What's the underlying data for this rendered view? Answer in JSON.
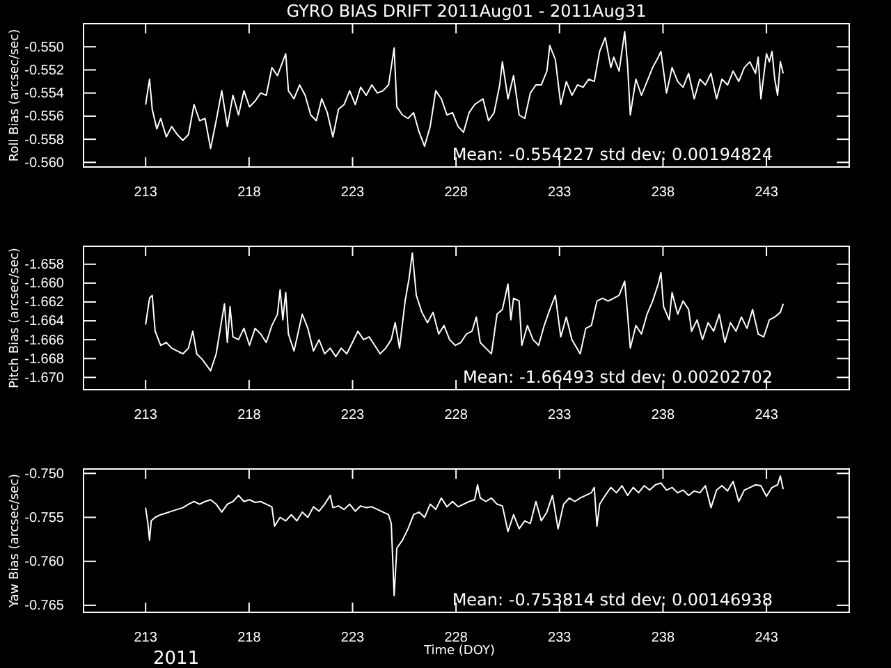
{
  "chart_data": [
    {
      "type": "line",
      "title": "GYRO BIAS DRIFT 2011Aug01 - 2011Aug31",
      "ylabel": "Roll Bias (arcsec/sec)",
      "annotations": [
        "Mean: -0.554227 std dev: 0.00194824"
      ],
      "xlim": [
        210,
        247
      ],
      "xticks": [
        213,
        218,
        223,
        228,
        233,
        238,
        243
      ],
      "ylim": [
        -0.5604,
        -0.548
      ],
      "yticks": [
        {
          "value": -0.55,
          "label": "-0.550"
        },
        {
          "value": -0.552,
          "label": "-0.552"
        },
        {
          "value": -0.554,
          "label": "-0.554"
        },
        {
          "value": -0.556,
          "label": "-0.556"
        },
        {
          "value": -0.558,
          "label": "-0.558"
        },
        {
          "value": -0.56,
          "label": "-0.560"
        }
      ],
      "series": [
        {
          "color": "#ffffff",
          "x": [
            213.0,
            213.19,
            213.32,
            213.54,
            213.73,
            214.0,
            214.26,
            214.53,
            214.8,
            215.07,
            215.34,
            215.61,
            215.87,
            216.14,
            216.41,
            216.68,
            216.95,
            217.22,
            217.49,
            217.75,
            218.02,
            218.29,
            218.56,
            218.83,
            219.1,
            219.37,
            219.77,
            219.9,
            220.17,
            220.44,
            220.71,
            220.98,
            221.25,
            221.51,
            221.78,
            222.05,
            222.32,
            222.59,
            222.86,
            223.13,
            223.39,
            223.66,
            223.93,
            224.2,
            224.47,
            224.74,
            225.01,
            225.14,
            225.41,
            225.68,
            225.95,
            226.22,
            226.48,
            226.75,
            227.02,
            227.29,
            227.56,
            227.83,
            228.1,
            228.36,
            228.63,
            228.9,
            229.3,
            229.57,
            229.84,
            230.11,
            230.24,
            230.51,
            230.78,
            231.05,
            231.32,
            231.59,
            231.86,
            232.12,
            232.39,
            232.53,
            232.8,
            233.06,
            233.33,
            233.6,
            233.87,
            234.14,
            234.41,
            234.68,
            234.94,
            235.21,
            235.48,
            235.62,
            235.88,
            236.15,
            236.29,
            236.42,
            236.69,
            236.96,
            237.23,
            237.5,
            237.77,
            237.9,
            238.17,
            238.44,
            238.71,
            238.97,
            239.24,
            239.51,
            239.78,
            240.05,
            240.32,
            240.59,
            240.85,
            241.12,
            241.39,
            241.66,
            241.93,
            242.2,
            242.47,
            242.6,
            242.73,
            243.0,
            243.14,
            243.27,
            243.4,
            243.54,
            243.67,
            243.81
          ],
          "values": [
            -0.555,
            -0.5528,
            -0.5554,
            -0.5571,
            -0.5562,
            -0.5578,
            -0.5569,
            -0.5576,
            -0.5581,
            -0.5576,
            -0.555,
            -0.5564,
            -0.5562,
            -0.5588,
            -0.5564,
            -0.5538,
            -0.5569,
            -0.5542,
            -0.5559,
            -0.5538,
            -0.5552,
            -0.5547,
            -0.554,
            -0.5542,
            -0.5518,
            -0.5525,
            -0.5506,
            -0.5538,
            -0.5545,
            -0.5533,
            -0.5542,
            -0.5559,
            -0.5564,
            -0.5545,
            -0.5557,
            -0.5578,
            -0.5554,
            -0.555,
            -0.5538,
            -0.555,
            -0.5535,
            -0.5542,
            -0.5533,
            -0.554,
            -0.5538,
            -0.5533,
            -0.5501,
            -0.5552,
            -0.5559,
            -0.5562,
            -0.5557,
            -0.5574,
            -0.5586,
            -0.5569,
            -0.5538,
            -0.5545,
            -0.5559,
            -0.5557,
            -0.5569,
            -0.5574,
            -0.5557,
            -0.555,
            -0.5545,
            -0.5564,
            -0.5557,
            -0.5533,
            -0.5513,
            -0.5545,
            -0.5525,
            -0.5559,
            -0.5562,
            -0.554,
            -0.5533,
            -0.5533,
            -0.5521,
            -0.5499,
            -0.5511,
            -0.555,
            -0.553,
            -0.5542,
            -0.5533,
            -0.5535,
            -0.5528,
            -0.553,
            -0.5504,
            -0.5492,
            -0.5518,
            -0.5509,
            -0.5521,
            -0.5487,
            -0.5516,
            -0.5559,
            -0.5528,
            -0.5542,
            -0.553,
            -0.5518,
            -0.5509,
            -0.5504,
            -0.554,
            -0.5518,
            -0.553,
            -0.5535,
            -0.5523,
            -0.5545,
            -0.5528,
            -0.5533,
            -0.5523,
            -0.5545,
            -0.5528,
            -0.5533,
            -0.5521,
            -0.553,
            -0.5518,
            -0.5513,
            -0.5523,
            -0.5509,
            -0.5545,
            -0.5506,
            -0.5513,
            -0.5504,
            -0.5528,
            -0.5542,
            -0.5513,
            -0.5523
          ]
        }
      ]
    },
    {
      "type": "line",
      "ylabel": "Pitch Bias (arcsec/sec)",
      "annotations": [
        "Mean: -1.66493 std dev: 0.00202702"
      ],
      "xlim": [
        210,
        247
      ],
      "xticks": [
        213,
        218,
        223,
        228,
        233,
        238,
        243
      ],
      "ylim": [
        -1.6713,
        -1.6561
      ],
      "yticks": [
        {
          "value": -1.658,
          "label": "-1.658"
        },
        {
          "value": -1.66,
          "label": "-1.660"
        },
        {
          "value": -1.662,
          "label": "-1.662"
        },
        {
          "value": -1.664,
          "label": "-1.664"
        },
        {
          "value": -1.666,
          "label": "-1.666"
        },
        {
          "value": -1.668,
          "label": "-1.668"
        },
        {
          "value": -1.67,
          "label": "-1.670"
        }
      ],
      "series": [
        {
          "color": "#ffffff",
          "x": [
            213.0,
            213.19,
            213.32,
            213.46,
            213.73,
            214.0,
            214.26,
            214.53,
            214.8,
            215.07,
            215.28,
            215.47,
            215.74,
            216.14,
            216.41,
            216.68,
            216.81,
            216.95,
            217.08,
            217.22,
            217.49,
            217.75,
            218.02,
            218.29,
            218.56,
            218.83,
            219.1,
            219.37,
            219.5,
            219.63,
            219.77,
            219.9,
            220.17,
            220.57,
            220.84,
            221.11,
            221.38,
            221.65,
            221.92,
            222.19,
            222.45,
            222.72,
            222.99,
            223.26,
            223.53,
            223.8,
            224.07,
            224.33,
            224.6,
            224.87,
            225.06,
            225.27,
            225.54,
            225.73,
            225.89,
            226.08,
            226.35,
            226.62,
            226.89,
            227.16,
            227.42,
            227.69,
            227.96,
            228.23,
            228.5,
            228.77,
            228.98,
            229.17,
            229.44,
            229.71,
            229.98,
            230.24,
            230.51,
            230.65,
            230.78,
            231.05,
            231.18,
            231.45,
            231.72,
            231.99,
            232.26,
            232.53,
            232.8,
            233.06,
            233.33,
            233.6,
            234.0,
            234.27,
            234.54,
            234.81,
            235.08,
            235.35,
            235.62,
            235.88,
            236.15,
            236.29,
            236.42,
            236.69,
            236.96,
            237.23,
            237.5,
            237.77,
            237.9,
            238.03,
            238.3,
            238.44,
            238.71,
            238.97,
            239.24,
            239.38,
            239.65,
            239.91,
            240.18,
            240.45,
            240.72,
            240.99,
            241.26,
            241.53,
            241.79,
            242.06,
            242.33,
            242.6,
            242.87,
            243.14,
            243.4,
            243.67,
            243.81
          ],
          "values": [
            -1.6644,
            -1.6616,
            -1.6613,
            -1.6651,
            -1.6666,
            -1.6663,
            -1.6669,
            -1.6672,
            -1.6675,
            -1.6669,
            -1.6651,
            -1.6675,
            -1.6681,
            -1.6693,
            -1.6675,
            -1.6639,
            -1.6622,
            -1.6663,
            -1.6625,
            -1.6657,
            -1.666,
            -1.6648,
            -1.6666,
            -1.6648,
            -1.6654,
            -1.6663,
            -1.6645,
            -1.6633,
            -1.6607,
            -1.6639,
            -1.661,
            -1.6654,
            -1.6672,
            -1.6633,
            -1.6648,
            -1.6672,
            -1.666,
            -1.6675,
            -1.6669,
            -1.6678,
            -1.6669,
            -1.6675,
            -1.6663,
            -1.6651,
            -1.666,
            -1.6657,
            -1.6666,
            -1.6675,
            -1.6669,
            -1.666,
            -1.6642,
            -1.6669,
            -1.6619,
            -1.6595,
            -1.6568,
            -1.6613,
            -1.6631,
            -1.6642,
            -1.6631,
            -1.6654,
            -1.6645,
            -1.666,
            -1.6666,
            -1.6663,
            -1.6654,
            -1.6651,
            -1.6636,
            -1.6663,
            -1.6669,
            -1.6675,
            -1.6633,
            -1.6628,
            -1.6601,
            -1.6639,
            -1.6616,
            -1.6619,
            -1.6666,
            -1.6645,
            -1.666,
            -1.6666,
            -1.6645,
            -1.6628,
            -1.6613,
            -1.6657,
            -1.6636,
            -1.666,
            -1.6675,
            -1.6648,
            -1.6645,
            -1.6619,
            -1.6616,
            -1.6619,
            -1.6616,
            -1.6613,
            -1.6598,
            -1.6633,
            -1.6669,
            -1.6645,
            -1.6654,
            -1.6633,
            -1.6619,
            -1.6601,
            -1.6589,
            -1.6625,
            -1.6639,
            -1.661,
            -1.6633,
            -1.6619,
            -1.6628,
            -1.6651,
            -1.6639,
            -1.666,
            -1.6642,
            -1.6651,
            -1.6633,
            -1.6663,
            -1.6642,
            -1.6651,
            -1.6636,
            -1.6648,
            -1.6628,
            -1.6654,
            -1.6657,
            -1.6639,
            -1.6636,
            -1.6631,
            -1.6622
          ]
        }
      ]
    },
    {
      "type": "line",
      "xlabel": "Time (DOY)",
      "ylabel": "Yaw Bias (arcsec/sec)",
      "annotations": [
        "Mean: -0.753814 std dev: 0.00146938",
        "2011"
      ],
      "xlim": [
        210,
        247
      ],
      "xticks": [
        213,
        218,
        223,
        228,
        233,
        238,
        243
      ],
      "ylim": [
        -0.7658,
        -0.7495
      ],
      "yticks": [
        {
          "value": -0.75,
          "label": "-0.750"
        },
        {
          "value": -0.755,
          "label": "-0.755"
        },
        {
          "value": -0.76,
          "label": "-0.760"
        },
        {
          "value": -0.765,
          "label": "-0.765"
        }
      ],
      "series": [
        {
          "color": "#ffffff",
          "x": [
            213.0,
            213.11,
            213.19,
            213.27,
            213.46,
            213.73,
            214.0,
            214.26,
            214.53,
            214.8,
            215.07,
            215.34,
            215.61,
            215.87,
            216.14,
            216.41,
            216.68,
            216.95,
            217.22,
            217.49,
            217.75,
            218.02,
            218.29,
            218.56,
            218.83,
            219.1,
            219.23,
            219.5,
            219.77,
            220.04,
            220.31,
            220.57,
            220.84,
            221.11,
            221.38,
            221.65,
            221.92,
            222.05,
            222.32,
            222.59,
            222.86,
            223.13,
            223.39,
            223.66,
            223.93,
            224.2,
            224.47,
            224.74,
            224.87,
            225.01,
            225.14,
            225.41,
            225.68,
            225.95,
            226.22,
            226.48,
            226.75,
            227.02,
            227.29,
            227.56,
            227.83,
            228.1,
            228.36,
            228.63,
            228.9,
            229.04,
            229.17,
            229.44,
            229.71,
            229.98,
            230.24,
            230.51,
            230.78,
            231.05,
            231.32,
            231.59,
            231.86,
            232.12,
            232.39,
            232.66,
            232.93,
            233.2,
            233.47,
            233.74,
            234.0,
            234.27,
            234.54,
            234.68,
            234.81,
            234.94,
            235.21,
            235.48,
            235.75,
            236.02,
            236.29,
            236.56,
            236.82,
            237.09,
            237.36,
            237.63,
            237.9,
            238.17,
            238.44,
            238.71,
            238.97,
            239.24,
            239.51,
            239.78,
            240.05,
            240.32,
            240.59,
            240.85,
            241.12,
            241.39,
            241.66,
            241.93,
            242.2,
            242.47,
            242.73,
            243.0,
            243.27,
            243.54,
            243.67,
            243.81
          ],
          "values": [
            -0.7539,
            -0.7557,
            -0.7576,
            -0.7554,
            -0.755,
            -0.7547,
            -0.7545,
            -0.7543,
            -0.7541,
            -0.7539,
            -0.7535,
            -0.7532,
            -0.7535,
            -0.7532,
            -0.753,
            -0.7535,
            -0.7544,
            -0.7535,
            -0.7532,
            -0.7525,
            -0.7532,
            -0.753,
            -0.7533,
            -0.7532,
            -0.7535,
            -0.7538,
            -0.756,
            -0.755,
            -0.7554,
            -0.7547,
            -0.7554,
            -0.7544,
            -0.755,
            -0.7538,
            -0.7543,
            -0.7535,
            -0.7525,
            -0.7539,
            -0.7537,
            -0.7541,
            -0.7535,
            -0.7543,
            -0.7537,
            -0.7539,
            -0.7538,
            -0.7541,
            -0.7544,
            -0.7547,
            -0.7557,
            -0.7639,
            -0.7585,
            -0.7576,
            -0.7563,
            -0.7547,
            -0.7544,
            -0.755,
            -0.7535,
            -0.7541,
            -0.7528,
            -0.7538,
            -0.7532,
            -0.7538,
            -0.7535,
            -0.7532,
            -0.753,
            -0.7513,
            -0.7528,
            -0.7532,
            -0.7528,
            -0.7535,
            -0.7537,
            -0.7566,
            -0.7547,
            -0.7563,
            -0.7554,
            -0.7557,
            -0.7532,
            -0.7554,
            -0.7544,
            -0.7525,
            -0.7563,
            -0.7535,
            -0.7528,
            -0.7532,
            -0.7528,
            -0.7525,
            -0.7522,
            -0.7516,
            -0.756,
            -0.7535,
            -0.7525,
            -0.7516,
            -0.7522,
            -0.7514,
            -0.7525,
            -0.7516,
            -0.7522,
            -0.7514,
            -0.7519,
            -0.7513,
            -0.7511,
            -0.7519,
            -0.7516,
            -0.7522,
            -0.7519,
            -0.7525,
            -0.752,
            -0.7522,
            -0.7514,
            -0.7539,
            -0.7519,
            -0.7514,
            -0.752,
            -0.7509,
            -0.7532,
            -0.7519,
            -0.7516,
            -0.7513,
            -0.7514,
            -0.7526,
            -0.7516,
            -0.7513,
            -0.7503,
            -0.7518
          ]
        }
      ]
    }
  ]
}
